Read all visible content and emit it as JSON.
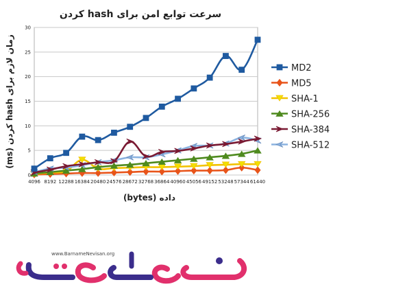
{
  "chart_data": {
    "type": "line",
    "title": "سرعت توابع امن برای hash کردن",
    "xlabel": "داده (bytes)",
    "ylabel": "زمان لازم برای hash کردن (ms)",
    "ylim": [
      0,
      30
    ],
    "yticks": [
      0,
      5,
      10,
      15,
      20,
      25,
      30
    ],
    "categories": [
      "4096",
      "8192",
      "12288",
      "16384",
      "20480",
      "24576",
      "28672",
      "32768",
      "36864",
      "40960",
      "45056",
      "49152",
      "53248",
      "57344",
      "61440"
    ],
    "grid": true,
    "legend_position": "right",
    "series": [
      {
        "name": "MD2",
        "color": "#1f5aa0",
        "marker": "square",
        "values": [
          1.3,
          3.4,
          4.5,
          7.8,
          7.1,
          8.6,
          9.8,
          11.6,
          13.9,
          15.5,
          17.6,
          19.8,
          24.2,
          21.4,
          27.5
        ]
      },
      {
        "name": "MD5",
        "color": "#e8541a",
        "marker": "diamond",
        "values": [
          0.1,
          0.2,
          0.3,
          0.4,
          0.4,
          0.5,
          0.6,
          0.7,
          0.7,
          0.8,
          0.9,
          0.9,
          1.0,
          1.5,
          1.0
        ]
      },
      {
        "name": "SHA-1",
        "color": "#f2c200",
        "marker": "triangle-down",
        "values": [
          0.2,
          0.5,
          0.8,
          3.1,
          1.3,
          1.4,
          1.5,
          1.6,
          1.6,
          1.7,
          1.8,
          2.0,
          2.1,
          2.2,
          2.2
        ]
      },
      {
        "name": "SHA-256",
        "color": "#4e8a1e",
        "marker": "triangle-up",
        "values": [
          0.3,
          0.6,
          0.9,
          1.2,
          1.6,
          1.9,
          2.1,
          2.4,
          2.7,
          3.0,
          3.3,
          3.6,
          3.9,
          4.3,
          5.0
        ]
      },
      {
        "name": "SHA-384",
        "color": "#7a1a33",
        "marker": "arrow-right",
        "values": [
          0.5,
          1.1,
          1.8,
          2.2,
          2.6,
          2.8,
          6.8,
          3.8,
          4.7,
          4.9,
          5.4,
          6.0,
          6.3,
          6.8,
          7.4
        ]
      },
      {
        "name": "SHA-512",
        "color": "#8cb3e0",
        "marker": "arrow-left",
        "values": [
          0.6,
          1.3,
          1.5,
          2.0,
          2.6,
          3.0,
          3.6,
          3.6,
          4.2,
          5.0,
          5.9,
          6.0,
          6.4,
          7.6,
          7.0
        ]
      }
    ]
  },
  "logo": {
    "url_text": "www.BarnameNevisan.org",
    "brand_text": "برنامه نویسان"
  }
}
